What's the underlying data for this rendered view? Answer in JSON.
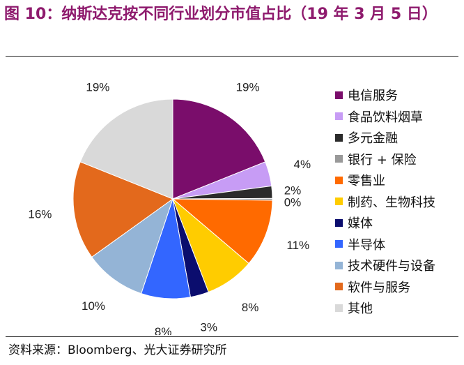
{
  "title": "图 10：纳斯达克按不同行业划分市值占比（19 年 3 月 5 日）",
  "source": "资料来源：Bloomberg、光大证券研究所",
  "chart_data": {
    "type": "pie",
    "title": "纳斯达克按不同行业划分市值占比（19 年 3 月 5 日）",
    "start_angle_deg": 0,
    "direction": "clockwise",
    "legend_position": "right",
    "slices": [
      {
        "label": "电信服务",
        "value": 19,
        "display": "19%",
        "color": "#7a0d6b"
      },
      {
        "label": "食品饮料烟草",
        "value": 4,
        "display": "4%",
        "color": "#c79cf5"
      },
      {
        "label": "多元金融",
        "value": 2,
        "display": "2%",
        "color": "#2b2b2b"
      },
      {
        "label": "银行 + 保险",
        "value": 0.3,
        "display": "0%",
        "color": "#999999"
      },
      {
        "label": "零售业",
        "value": 11,
        "display": "11%",
        "color": "#ff6a00"
      },
      {
        "label": "制药、生物科技",
        "value": 8,
        "display": "8%",
        "color": "#ffcc00"
      },
      {
        "label": "媒体",
        "value": 3,
        "display": "3%",
        "color": "#0b0d6e"
      },
      {
        "label": "半导体",
        "value": 8,
        "display": "8%",
        "color": "#3366ff"
      },
      {
        "label": "技术硬件与设备",
        "value": 10,
        "display": "10%",
        "color": "#94b4d6"
      },
      {
        "label": "软件与服务",
        "value": 16,
        "display": "16%",
        "color": "#e3691c"
      },
      {
        "label": "其他",
        "value": 19,
        "display": "19%",
        "color": "#d9d9d9"
      }
    ]
  }
}
